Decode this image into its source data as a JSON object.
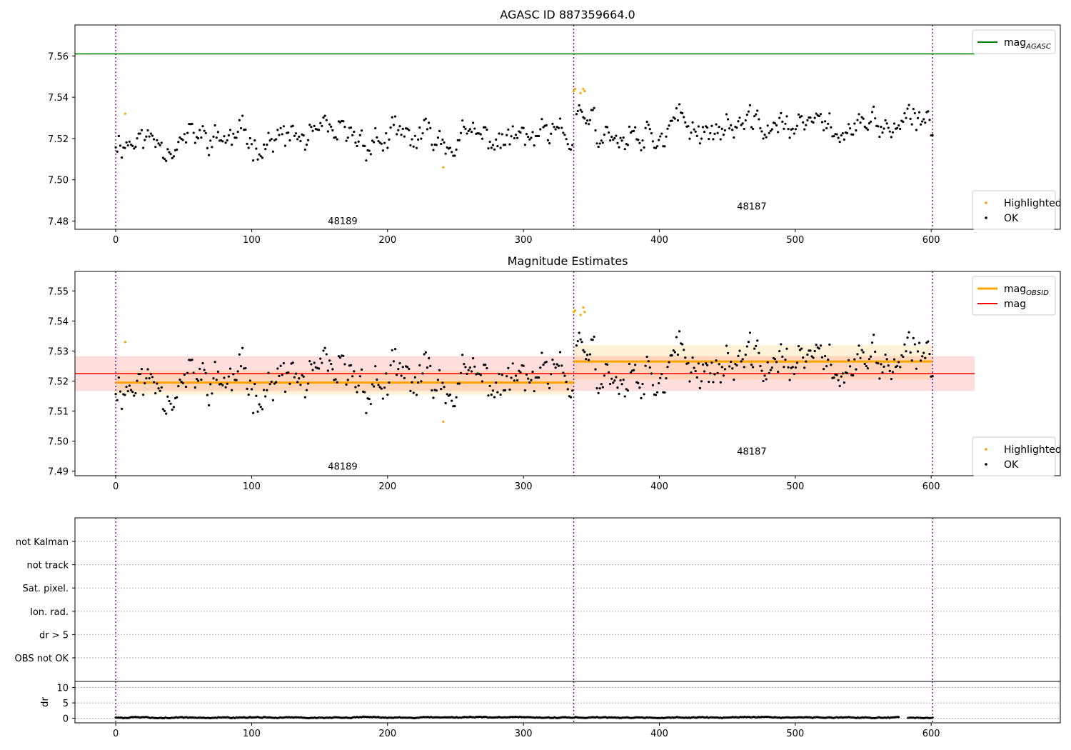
{
  "chart_data": [
    {
      "type": "scatter",
      "title": "AGASC ID 887359664.0",
      "xlim": [
        -30,
        695
      ],
      "ylim": [
        7.476,
        7.575
      ],
      "x_ticks": [
        0,
        100,
        200,
        300,
        400,
        500,
        600
      ],
      "y_ticks": [
        7.48,
        7.5,
        7.52,
        7.54,
        7.56
      ],
      "y_decimals": 2,
      "obsid_boundaries": [
        0,
        337,
        601
      ],
      "obsid_labels": [
        {
          "label": "48189",
          "x": 167,
          "y": 7.4785
        },
        {
          "label": "48187",
          "x": 468,
          "y": 7.4855
        }
      ],
      "hlines": [
        {
          "name": "mag_AGASC",
          "value": 7.561,
          "x_range": [
            -30,
            632
          ],
          "color": "#008000"
        }
      ],
      "bands": [],
      "series": [
        {
          "name": "Highlighted",
          "color": "#ffa500",
          "x": [
            7,
            241,
            337,
            338,
            342,
            344,
            345
          ],
          "y": [
            7.532,
            7.506,
            7.543,
            7.544,
            7.542,
            7.544,
            7.543
          ]
        },
        {
          "name": "OK",
          "color": "#000000",
          "segments": [
            {
              "x_start": 0,
              "x_end": 336,
              "count": 300,
              "mean": 7.5195,
              "amp": 0.006,
              "seed": 11,
              "lo": 7.507,
              "hi": 7.531
            },
            {
              "x_start": 339,
              "x_end": 352,
              "count": 14,
              "mean": 7.534,
              "amp": 0.004,
              "seed": 23,
              "lo": 7.527,
              "hi": 7.541
            },
            {
              "x_start": 353,
              "x_end": 601,
              "count": 230,
              "mean": 7.5255,
              "amp": 0.006,
              "seed": 37,
              "lo": 7.513,
              "hi": 7.538
            }
          ]
        }
      ],
      "legend_top": [
        {
          "label": "mag",
          "sub": "AGASC",
          "color": "#008000"
        }
      ],
      "legend_bottom": [
        {
          "label": "Highlighted",
          "color": "#ffa500"
        },
        {
          "label": "OK",
          "color": "#000000"
        }
      ]
    },
    {
      "type": "scatter",
      "title": "Magnitude Estimates",
      "xlim": [
        -30,
        695
      ],
      "ylim": [
        7.4885,
        7.5565
      ],
      "x_ticks": [
        0,
        100,
        200,
        300,
        400,
        500,
        600
      ],
      "y_ticks": [
        7.49,
        7.5,
        7.51,
        7.52,
        7.53,
        7.54,
        7.55
      ],
      "y_decimals": 2,
      "obsid_boundaries": [
        0,
        337,
        601
      ],
      "obsid_labels": [
        {
          "label": "48189",
          "x": 167,
          "y": 7.4905
        },
        {
          "label": "48187",
          "x": 468,
          "y": 7.4955
        }
      ],
      "bands": [
        {
          "x_range": [
            -30,
            632
          ],
          "y_range": [
            7.5167,
            7.5283
          ],
          "color": "#ff0000",
          "opacity": 0.13
        },
        {
          "x_range": [
            0,
            337
          ],
          "y_range": [
            7.5155,
            7.5235
          ],
          "color": "#ffa500",
          "opacity": 0.15
        },
        {
          "x_range": [
            337,
            601
          ],
          "y_range": [
            7.5205,
            7.532
          ],
          "color": "#ffa500",
          "opacity": 0.15
        }
      ],
      "hlines": [
        {
          "name": "mag",
          "value": 7.5225,
          "x_range": [
            -30,
            632
          ],
          "color": "#ff0000"
        },
        {
          "name": "mag_OBSID 48189",
          "value": 7.5195,
          "x_range": [
            0,
            337
          ],
          "color": "#ffa500"
        },
        {
          "name": "mag_OBSID 48187",
          "value": 7.5265,
          "x_range": [
            337,
            601
          ],
          "color": "#ffa500"
        }
      ],
      "series": [
        {
          "name": "Highlighted",
          "color": "#ffa500",
          "x": [
            7,
            241,
            337,
            338,
            342,
            344,
            345
          ],
          "y": [
            7.533,
            7.5065,
            7.543,
            7.5435,
            7.542,
            7.5445,
            7.543
          ]
        },
        {
          "name": "OK",
          "color": "#000000",
          "segments": [
            {
              "x_start": 0,
              "x_end": 336,
              "count": 300,
              "mean": 7.5195,
              "amp": 0.006,
              "seed": 11,
              "lo": 7.507,
              "hi": 7.531
            },
            {
              "x_start": 339,
              "x_end": 352,
              "count": 14,
              "mean": 7.534,
              "amp": 0.004,
              "seed": 23,
              "lo": 7.527,
              "hi": 7.541
            },
            {
              "x_start": 353,
              "x_end": 601,
              "count": 230,
              "mean": 7.5255,
              "amp": 0.006,
              "seed": 37,
              "lo": 7.513,
              "hi": 7.538
            }
          ]
        }
      ],
      "legend_top": [
        {
          "label": "mag",
          "sub": "OBSID",
          "color": "#ffa500"
        },
        {
          "label": "mag",
          "sub": "",
          "color": "#ff0000"
        }
      ],
      "legend_bottom": [
        {
          "label": "Highlighted",
          "color": "#ffa500"
        },
        {
          "label": "OK",
          "color": "#000000"
        }
      ]
    },
    {
      "type": "scatter",
      "title": "",
      "xlim": [
        -30,
        695
      ],
      "categories": [
        "not Kalman",
        "not track",
        "Sat. pixel.",
        "Ion. rad.",
        "dr > 5",
        "OBS not OK"
      ],
      "flag_grid": "dotted",
      "obsid_boundaries": [
        0,
        337,
        601
      ],
      "series": []
    },
    {
      "type": "scatter",
      "title": "",
      "xlim": [
        -30,
        695
      ],
      "ylim": [
        -1.5,
        12
      ],
      "ylabel": "dr",
      "x_ticks": [
        0,
        100,
        200,
        300,
        400,
        500,
        600
      ],
      "y_ticks": [
        0,
        5,
        10
      ],
      "y_decimals": 0,
      "obsid_boundaries": [
        0,
        337,
        601
      ],
      "series": [
        {
          "name": "dr",
          "color": "#000000",
          "segments": [
            {
              "x_start": 0,
              "x_end": 576,
              "count": 520,
              "mean": 0.25,
              "amp": 0.15,
              "seed": 5,
              "lo": 0.0,
              "hi": 0.8
            },
            {
              "x_start": 583,
              "x_end": 601,
              "count": 15,
              "mean": 0.2,
              "amp": 0.1,
              "seed": 9,
              "lo": 0.0,
              "hi": 0.5
            }
          ]
        }
      ]
    }
  ]
}
